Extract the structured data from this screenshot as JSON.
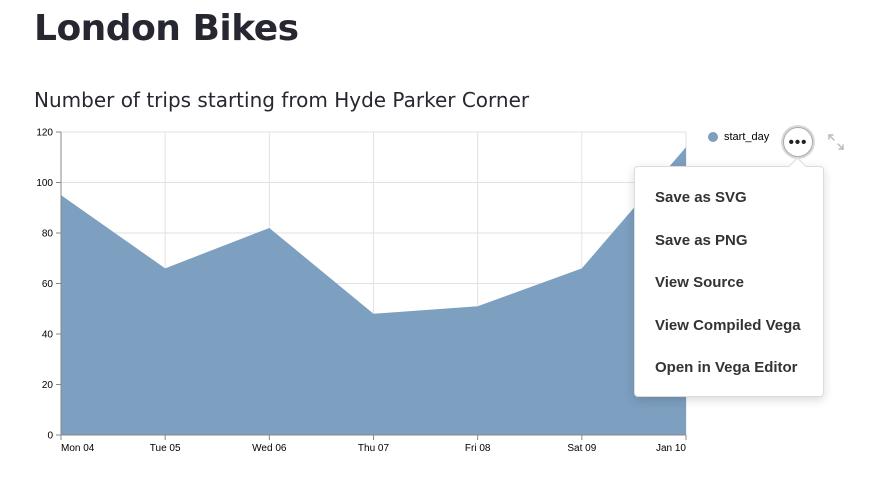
{
  "app": {
    "title": "London Bikes"
  },
  "chart_data": {
    "type": "area",
    "title": "Number of trips starting from Hyde Parker Corner",
    "x": [
      "Mon 04",
      "Tue 05",
      "Wed 06",
      "Thu 07",
      "Fri 08",
      "Sat 09",
      "Jan 10"
    ],
    "series": [
      {
        "name": "start_day",
        "values": [
          95,
          66,
          82,
          48,
          51,
          66,
          114
        ]
      }
    ],
    "ylim": [
      0,
      120
    ],
    "yticks": [
      0,
      20,
      40,
      60,
      80,
      100,
      120
    ],
    "grid": true,
    "legend": "right",
    "color": "#7d9fc0"
  },
  "actions_menu": {
    "button_icon": "more-horizontal-icon",
    "button_glyph": "•••",
    "items": [
      {
        "label": "Save as SVG"
      },
      {
        "label": "Save as PNG"
      },
      {
        "label": "View Source"
      },
      {
        "label": "View Compiled Vega"
      },
      {
        "label": "Open in Vega Editor"
      }
    ]
  },
  "fullscreen": {
    "icon": "expand-icon"
  }
}
